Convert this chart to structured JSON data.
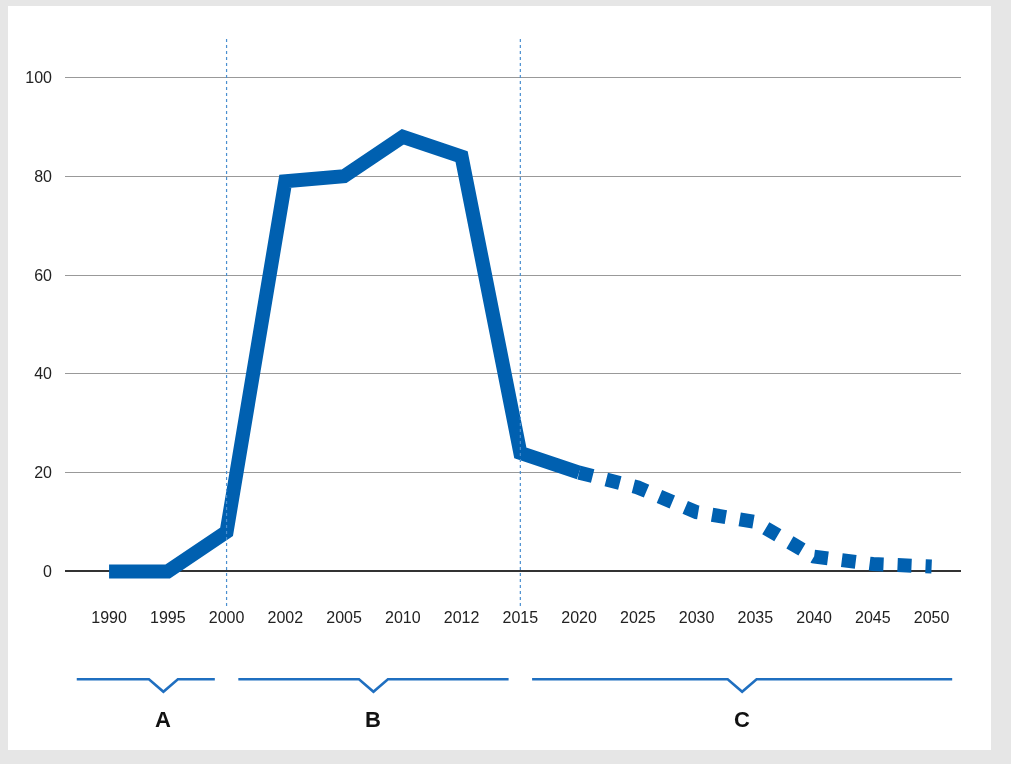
{
  "chart_data": {
    "type": "line",
    "categories": [
      "1990",
      "1995",
      "2000",
      "2002",
      "2005",
      "2010",
      "2012",
      "2015",
      "2020",
      "2025",
      "2030",
      "2035",
      "2040",
      "2045",
      "2050"
    ],
    "series": [
      {
        "color": "#0060b0",
        "line_style": "solid",
        "values": [
          0,
          0,
          8,
          79,
          80,
          88,
          84,
          24,
          20,
          null,
          null,
          null,
          null,
          null,
          null
        ]
      },
      {
        "color": "#0060b0",
        "line_style": "dotted",
        "values": [
          null,
          null,
          null,
          null,
          null,
          null,
          null,
          null,
          20,
          17,
          12,
          10,
          3,
          1.5,
          1
        ]
      }
    ],
    "ylim": [
      -7,
      108
    ],
    "yticks": [
      0,
      20,
      40,
      60,
      80,
      100
    ],
    "grid": "y",
    "marker": "none",
    "ref_lines": [
      {
        "axis": "x",
        "value": "2000",
        "color": "#4a8fd0",
        "line_style": "dotted"
      },
      {
        "axis": "x",
        "value": "2015",
        "color": "#4a8fd0",
        "line_style": "dotted"
      }
    ],
    "annotations": [
      "A",
      "B",
      "C"
    ]
  }
}
